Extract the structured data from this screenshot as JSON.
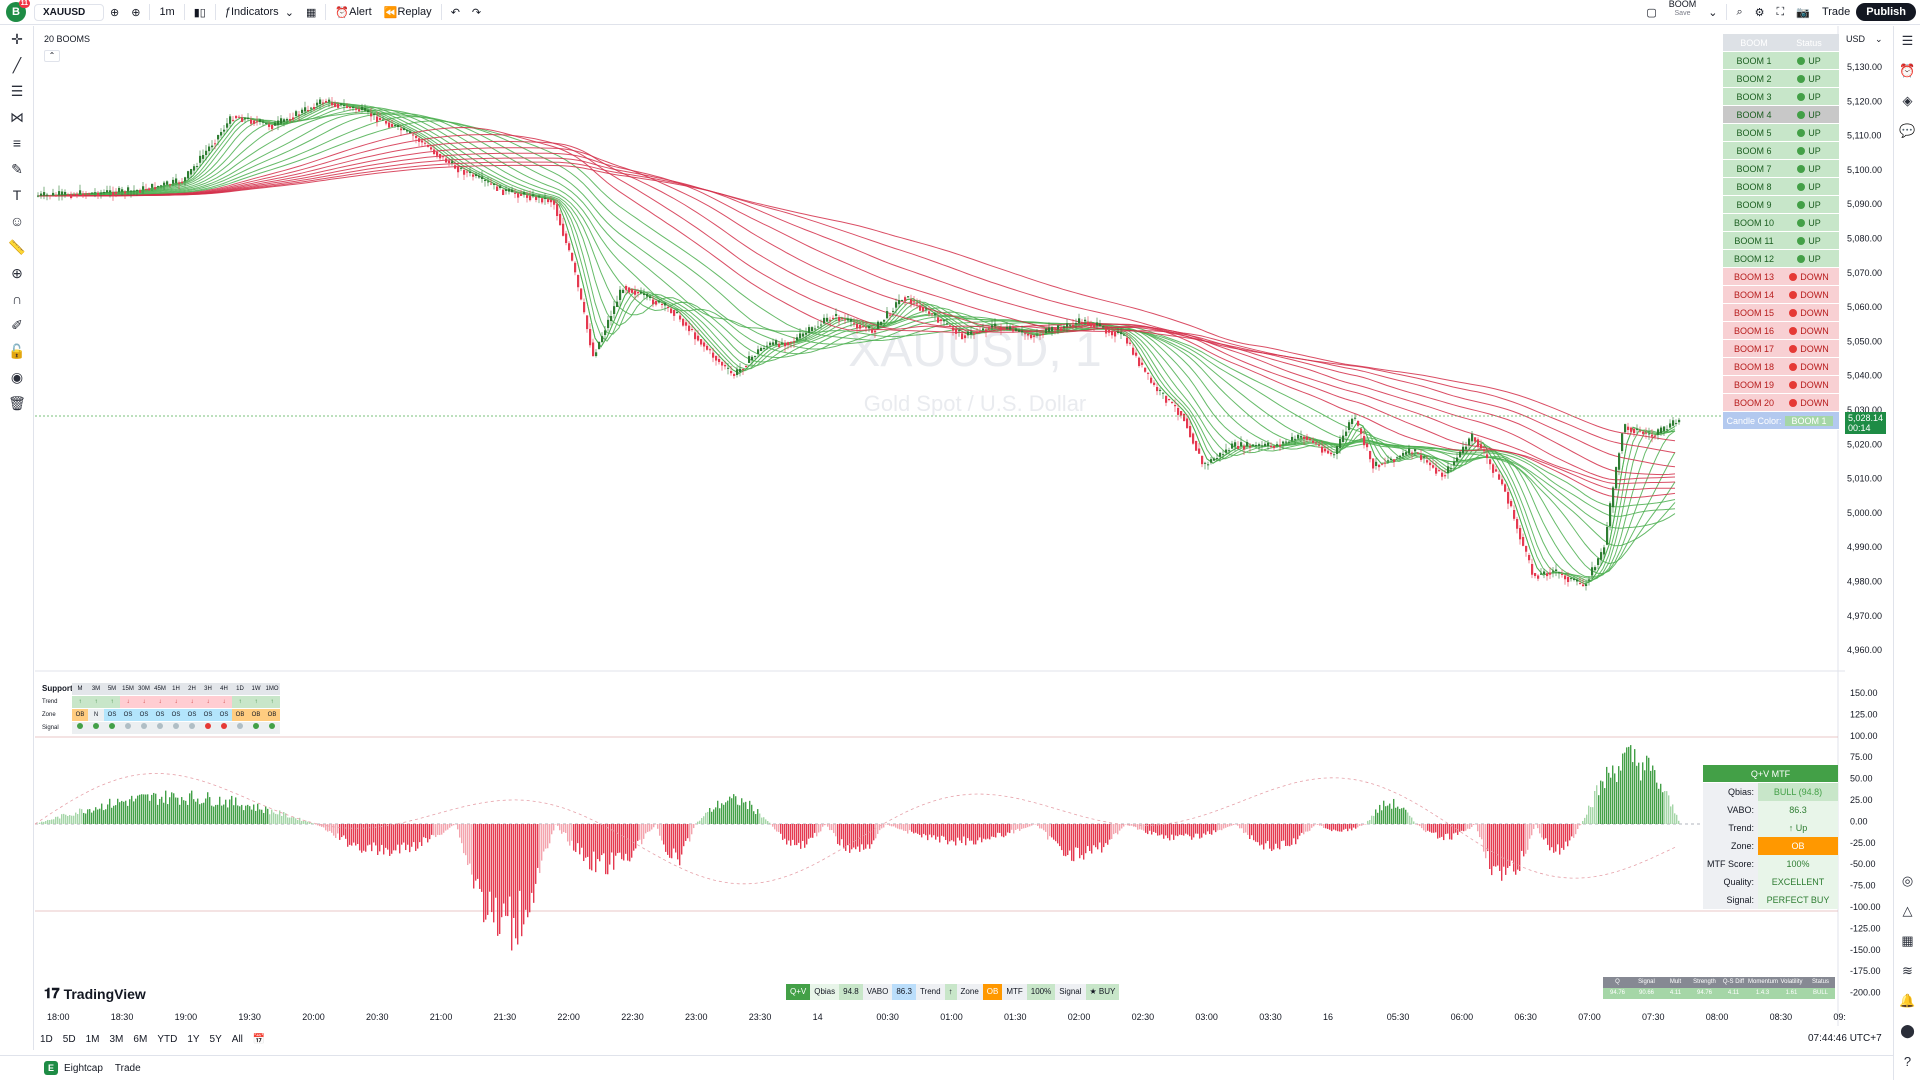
{
  "topbar": {
    "avatar_letter": "B",
    "avatar_badge": "11",
    "symbol": "XAUUSD",
    "interval": "1m",
    "indicators_label": "Indicators",
    "alert_label": "Alert",
    "replay_label": "Replay",
    "layout_name": "BOOM",
    "layout_sub": "Save",
    "trade_label": "Trade",
    "publish_label": "Publish"
  },
  "chart": {
    "indicator_title": "20 BOOMS",
    "watermark_symbol": "XAUUSD, 1",
    "watermark_name": "Gold Spot / U.S. Dollar",
    "currency": "USD",
    "price_label": "5,028.14",
    "price_countdown": "00:14",
    "price_axis": [
      "5,130.00",
      "5,120.00",
      "5,110.00",
      "5,100.00",
      "5,090.00",
      "5,080.00",
      "5,070.00",
      "5,060.00",
      "5,050.00",
      "5,040.00",
      "5,030.00",
      "5,020.00",
      "5,010.00",
      "5,000.00",
      "4,990.00",
      "4,980.00",
      "4,970.00",
      "4,960.00"
    ],
    "osc_axis": [
      "150.00",
      "125.00",
      "100.00",
      "75.00",
      "50.00",
      "25.00",
      "0.00",
      "-25.00",
      "-50.00",
      "-75.00",
      "-100.00",
      "-125.00",
      "-150.00",
      "-175.00",
      "-200.00"
    ],
    "time_axis": [
      "18:00",
      "18:30",
      "19:00",
      "19:30",
      "20:00",
      "20:30",
      "21:00",
      "21:30",
      "22:00",
      "22:30",
      "23:00",
      "23:30",
      "14",
      "00:30",
      "01:00",
      "01:30",
      "02:00",
      "02:30",
      "03:00",
      "03:30",
      "16",
      "05:30",
      "06:00",
      "06:30",
      "07:00",
      "07:30",
      "08:00",
      "08:30",
      "09:"
    ]
  },
  "boom_table": {
    "header_name": "BOOM",
    "header_status": "Status",
    "rows": [
      {
        "name": "BOOM 1",
        "status": "UP"
      },
      {
        "name": "BOOM 2",
        "status": "UP"
      },
      {
        "name": "BOOM 3",
        "status": "UP"
      },
      {
        "name": "BOOM 4",
        "status": "UP"
      },
      {
        "name": "BOOM 5",
        "status": "UP"
      },
      {
        "name": "BOOM 6",
        "status": "UP"
      },
      {
        "name": "BOOM 7",
        "status": "UP"
      },
      {
        "name": "BOOM 8",
        "status": "UP"
      },
      {
        "name": "BOOM 9",
        "status": "UP"
      },
      {
        "name": "BOOM 10",
        "status": "UP"
      },
      {
        "name": "BOOM 11",
        "status": "UP"
      },
      {
        "name": "BOOM 12",
        "status": "UP"
      },
      {
        "name": "BOOM 13",
        "status": "DOWN"
      },
      {
        "name": "BOOM 14",
        "status": "DOWN"
      },
      {
        "name": "BOOM 15",
        "status": "DOWN"
      },
      {
        "name": "BOOM 16",
        "status": "DOWN"
      },
      {
        "name": "BOOM 17",
        "status": "DOWN"
      },
      {
        "name": "BOOM 18",
        "status": "DOWN"
      },
      {
        "name": "BOOM 19",
        "status": "DOWN"
      },
      {
        "name": "BOOM 20",
        "status": "DOWN"
      }
    ],
    "candle_color_label": "Candle Color:",
    "candle_color_value": "BOOM 1"
  },
  "qv_table": {
    "title": "Q+V MTF",
    "rows": [
      {
        "key": "Qbias:",
        "value": "BULL (94.8)",
        "tone": "green"
      },
      {
        "key": "VABO:",
        "value": "86.3",
        "tone": "lightgreen"
      },
      {
        "key": "Trend:",
        "value": "↑ Up",
        "tone": "lightgreen"
      },
      {
        "key": "Zone:",
        "value": "OB",
        "tone": "orange"
      },
      {
        "key": "MTF Score:",
        "value": "100%",
        "tone": "lightgreen"
      },
      {
        "key": "Quality:",
        "value": "EXCELLENT",
        "tone": "lightgreen"
      },
      {
        "key": "Signal:",
        "value": "PERFECT BUY",
        "tone": "lightgreen"
      }
    ]
  },
  "support_table": {
    "title": "Support",
    "tfs": [
      "M",
      "3M",
      "5M",
      "15M",
      "30M",
      "45M",
      "1H",
      "2H",
      "3H",
      "4H",
      "1D",
      "1W",
      "1MO"
    ],
    "trend_label": "Trend",
    "zone_label": "Zone",
    "signal_label": "Signal",
    "trend": [
      "↑",
      "↑",
      "↑",
      "↓",
      "↓",
      "↓",
      "↓",
      "↓",
      "↓",
      "↓",
      "↑",
      "↑",
      "↑"
    ],
    "zone": [
      "OB",
      "N",
      "OS",
      "OS",
      "OS",
      "OS",
      "OS",
      "OS",
      "OS",
      "OS",
      "OB",
      "OB",
      "OB"
    ]
  },
  "qv_strip": {
    "items": [
      "Q+V",
      "Qbias",
      "94.8",
      "VABO",
      "86.3",
      "Trend",
      "↑",
      "Zone",
      "OB",
      "MTF",
      "100%",
      "Signal",
      "★ BUY"
    ]
  },
  "stat_strip": {
    "headers": [
      "Q",
      "Signal",
      "Mult",
      "Strength",
      "Q-S Diff",
      "Momentum",
      "Volatility",
      "Status"
    ],
    "values": [
      "94.76",
      "90.66",
      "4.11",
      "94.76",
      "4.11",
      "1.4.3",
      "1.61",
      "BULL"
    ]
  },
  "bottom": {
    "ranges": [
      "1D",
      "5D",
      "1M",
      "3M",
      "6M",
      "YTD",
      "1Y",
      "5Y",
      "All"
    ],
    "clock": "07:44:46 UTC+7",
    "broker": "Eightcap",
    "broker_trade": "Trade",
    "logo_text": "TradingView"
  },
  "colors": {
    "up": "#4caf50",
    "down": "#e53950",
    "accent": "#2962ff"
  }
}
